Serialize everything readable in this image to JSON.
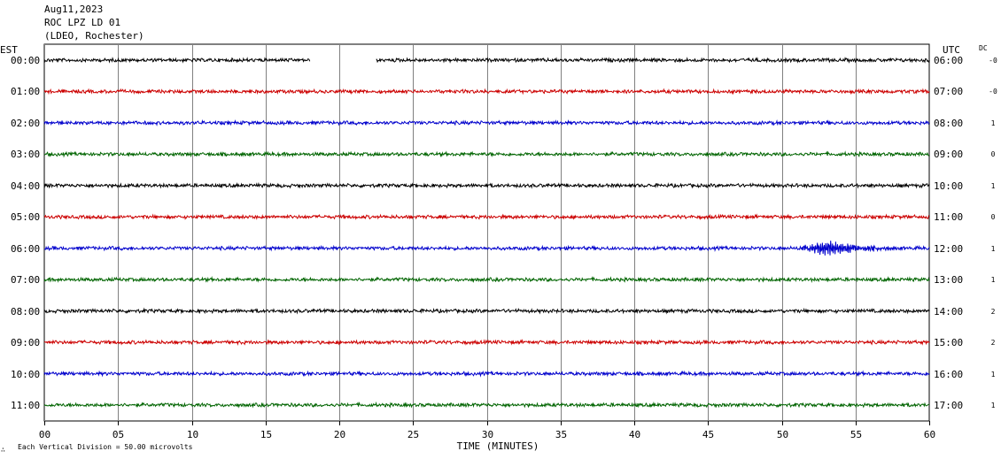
{
  "header": {
    "date": "Aug11,2023",
    "station": "ROC LPZ LD 01",
    "network": "(LDEO, Rochester)"
  },
  "axis": {
    "left_zone": "EST",
    "right_zone": "UTC",
    "dc_label": "DC",
    "xlabel": "TIME (MINUTES)",
    "footnote": "Each Vertical Division =   50.00 microvolts",
    "corner_mark": "∴"
  },
  "chart_data": {
    "type": "line",
    "title": "",
    "xlabel": "TIME (MINUTES)",
    "xlim": [
      0,
      60
    ],
    "x_ticks": [
      "00",
      "05",
      "10",
      "15",
      "20",
      "25",
      "30",
      "35",
      "40",
      "45",
      "50",
      "55",
      "60"
    ],
    "vertical_division_microvolts": 50.0,
    "trace_colors": [
      "#000000",
      "#cc0000",
      "#0000cc",
      "#006400"
    ],
    "grid": true,
    "rows": [
      {
        "est": "00:00",
        "utc": "06:00",
        "dc": "-0",
        "color": "#000000",
        "gaps": [
          [
            18.0,
            22.5
          ]
        ],
        "events": []
      },
      {
        "est": "01:00",
        "utc": "07:00",
        "dc": "-0",
        "color": "#cc0000",
        "gaps": [],
        "events": []
      },
      {
        "est": "02:00",
        "utc": "08:00",
        "dc": "1",
        "color": "#0000cc",
        "gaps": [],
        "events": []
      },
      {
        "est": "03:00",
        "utc": "09:00",
        "dc": "0",
        "color": "#006400",
        "gaps": [],
        "events": []
      },
      {
        "est": "04:00",
        "utc": "10:00",
        "dc": "1",
        "color": "#000000",
        "gaps": [],
        "events": []
      },
      {
        "est": "05:00",
        "utc": "11:00",
        "dc": "0",
        "color": "#cc0000",
        "gaps": [],
        "events": []
      },
      {
        "est": "06:00",
        "utc": "12:00",
        "dc": "1",
        "color": "#0000cc",
        "gaps": [],
        "events": [
          {
            "start_min": 50.8,
            "end_min": 57.5,
            "peak_min": 53.3,
            "peak_amplitude_px": 8
          }
        ]
      },
      {
        "est": "07:00",
        "utc": "13:00",
        "dc": "1",
        "color": "#006400",
        "gaps": [],
        "events": []
      },
      {
        "est": "08:00",
        "utc": "14:00",
        "dc": "2",
        "color": "#000000",
        "gaps": [],
        "events": []
      },
      {
        "est": "09:00",
        "utc": "15:00",
        "dc": "2",
        "color": "#cc0000",
        "gaps": [],
        "events": []
      },
      {
        "est": "10:00",
        "utc": "16:00",
        "dc": "1",
        "color": "#0000cc",
        "gaps": [],
        "events": []
      },
      {
        "est": "11:00",
        "utc": "17:00",
        "dc": "1",
        "color": "#006400",
        "gaps": [],
        "events": []
      }
    ]
  }
}
